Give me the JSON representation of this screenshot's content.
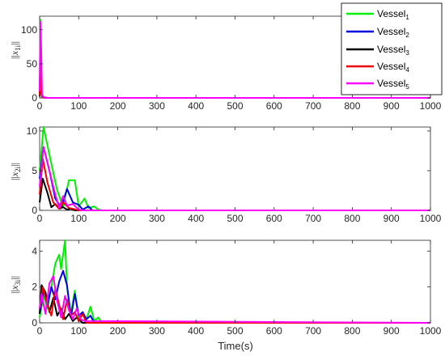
{
  "chart_data": [
    {
      "type": "line",
      "ylabel": "||x1i||",
      "xlim": [
        0,
        1000
      ],
      "ylim": [
        0,
        120
      ],
      "xticks": [
        0,
        100,
        200,
        300,
        400,
        500,
        600,
        700,
        800,
        900,
        1000
      ],
      "yticks": [
        0,
        50,
        100
      ],
      "series": [
        {
          "name": "Vessel1",
          "color": "#00ee00",
          "x": [
            0,
            2,
            4,
            6,
            10,
            20,
            1000
          ],
          "y": [
            10,
            115,
            20,
            4,
            1,
            0,
            0
          ]
        },
        {
          "name": "Vessel2",
          "color": "#0000dd",
          "x": [
            0,
            2,
            4,
            6,
            10,
            20,
            1000
          ],
          "y": [
            5,
            60,
            12,
            3,
            1,
            0,
            0
          ]
        },
        {
          "name": "Vessel3",
          "color": "#000000",
          "x": [
            0,
            2,
            4,
            6,
            10,
            20,
            1000
          ],
          "y": [
            2,
            28,
            8,
            2,
            0.5,
            0,
            0
          ]
        },
        {
          "name": "Vessel4",
          "color": "#ee0000",
          "x": [
            0,
            2,
            4,
            6,
            10,
            20,
            1000
          ],
          "y": [
            3,
            45,
            10,
            2,
            0.5,
            0,
            0
          ]
        },
        {
          "name": "Vessel5",
          "color": "#ff00ff",
          "x": [
            0,
            2,
            4,
            6,
            10,
            20,
            1000
          ],
          "y": [
            10,
            112,
            72,
            5,
            1,
            0,
            0
          ]
        }
      ]
    },
    {
      "type": "line",
      "ylabel": "||x2i||",
      "xlim": [
        0,
        1000
      ],
      "ylim": [
        0,
        10.5
      ],
      "xticks": [
        0,
        100,
        200,
        300,
        400,
        500,
        600,
        700,
        800,
        900,
        1000
      ],
      "yticks": [
        0,
        5,
        10
      ],
      "series": [
        {
          "name": "Vessel1",
          "color": "#00ee00",
          "x": [
            0,
            10,
            25,
            45,
            60,
            75,
            90,
            100,
            115,
            125,
            140,
            150,
            160,
            1000
          ],
          "y": [
            5,
            10.5,
            7,
            2.5,
            0.5,
            3.8,
            3.8,
            0.5,
            1.5,
            0.3,
            0.5,
            0.1,
            0,
            0
          ]
        },
        {
          "name": "Vessel2",
          "color": "#0000dd",
          "x": [
            0,
            10,
            25,
            40,
            55,
            70,
            85,
            100,
            110,
            125,
            135,
            1000
          ],
          "y": [
            4,
            8,
            5,
            1.5,
            0.3,
            2.7,
            1,
            0.7,
            0.1,
            0.5,
            0,
            0
          ]
        },
        {
          "name": "Vessel3",
          "color": "#000000",
          "x": [
            0,
            8,
            20,
            30,
            40,
            50,
            60,
            70,
            80,
            90,
            1000
          ],
          "y": [
            1,
            4,
            2.2,
            0.4,
            0.8,
            0.2,
            0.4,
            0.1,
            0.2,
            0,
            0
          ]
        },
        {
          "name": "Vessel4",
          "color": "#ee0000",
          "x": [
            0,
            8,
            20,
            35,
            50,
            60,
            75,
            85,
            100,
            1000
          ],
          "y": [
            2,
            6.5,
            3.5,
            1,
            0.2,
            1,
            0.3,
            0.2,
            0,
            0
          ]
        },
        {
          "name": "Vessel5",
          "color": "#ff00ff",
          "x": [
            0,
            10,
            25,
            40,
            50,
            60,
            70,
            85,
            100,
            110,
            1000
          ],
          "y": [
            3,
            8,
            5,
            2,
            0.3,
            1.8,
            0.6,
            0.8,
            0.1,
            0,
            0
          ]
        }
      ]
    },
    {
      "type": "line",
      "ylabel": "||x3i||",
      "xlim": [
        0,
        1000
      ],
      "ylim": [
        0,
        4.6
      ],
      "xticks": [
        0,
        100,
        200,
        300,
        400,
        500,
        600,
        700,
        800,
        900,
        1000
      ],
      "yticks": [
        0,
        2,
        4
      ],
      "series": [
        {
          "name": "Vessel1",
          "color": "#00ee00",
          "x": [
            0,
            10,
            20,
            30,
            40,
            50,
            55,
            65,
            70,
            80,
            90,
            100,
            110,
            120,
            130,
            140,
            150,
            160,
            1000
          ],
          "y": [
            0.3,
            1.5,
            0.8,
            2,
            3.3,
            3.8,
            3,
            4.6,
            2,
            0.5,
            1.8,
            0.3,
            0.5,
            0.2,
            0.9,
            0.1,
            0.3,
            0,
            0
          ]
        },
        {
          "name": "Vessel2",
          "color": "#0000dd",
          "x": [
            0,
            10,
            20,
            30,
            40,
            50,
            60,
            70,
            80,
            90,
            100,
            110,
            120,
            130,
            140,
            1000
          ],
          "y": [
            0.5,
            1.8,
            1,
            2,
            1.3,
            2.3,
            2.9,
            2.1,
            0.3,
            1.6,
            0.4,
            0.6,
            0.2,
            0.4,
            0,
            0
          ]
        },
        {
          "name": "Vessel3",
          "color": "#000000",
          "x": [
            0,
            5,
            15,
            25,
            35,
            45,
            55,
            65,
            75,
            85,
            95,
            110,
            1000
          ],
          "y": [
            0.5,
            2.1,
            1.7,
            0.6,
            1.4,
            0.4,
            0.8,
            0.2,
            0.5,
            0.1,
            0.3,
            0,
            0
          ]
        },
        {
          "name": "Vessel4",
          "color": "#ee0000",
          "x": [
            0,
            8,
            20,
            30,
            40,
            50,
            60,
            70,
            80,
            90,
            100,
            110,
            120,
            1000
          ],
          "y": [
            0.8,
            2,
            1,
            0.4,
            1.9,
            1,
            0.2,
            1.3,
            0.4,
            0.6,
            0.1,
            0.5,
            0,
            0
          ]
        },
        {
          "name": "Vessel5",
          "color": "#ff00ff",
          "x": [
            0,
            5,
            15,
            25,
            35,
            45,
            55,
            65,
            75,
            85,
            95,
            105,
            115,
            1000
          ],
          "y": [
            0.8,
            1.6,
            0.5,
            2.2,
            2.6,
            1.2,
            0.3,
            1.5,
            0.7,
            0.2,
            0.8,
            0.2,
            0.1,
            0
          ]
        }
      ]
    }
  ],
  "legend": {
    "placement": "top-right",
    "entries": [
      {
        "base": "Vessel",
        "sub": "1",
        "color": "#00ee00"
      },
      {
        "base": "Vessel",
        "sub": "2",
        "color": "#0000dd"
      },
      {
        "base": "Vessel",
        "sub": "3",
        "color": "#000000"
      },
      {
        "base": "Vessel",
        "sub": "4",
        "color": "#ee0000"
      },
      {
        "base": "Vessel",
        "sub": "5",
        "color": "#ff00ff"
      }
    ]
  },
  "axis_labels": {
    "y1": {
      "pre": "||",
      "var": "x",
      "sub": "1i",
      "post": "||"
    },
    "y2": {
      "pre": "||",
      "var": "x",
      "sub": "2i",
      "post": "||"
    },
    "y3": {
      "pre": "||",
      "var": "x",
      "sub": "3i",
      "post": "||"
    },
    "x": "Time(s)"
  }
}
